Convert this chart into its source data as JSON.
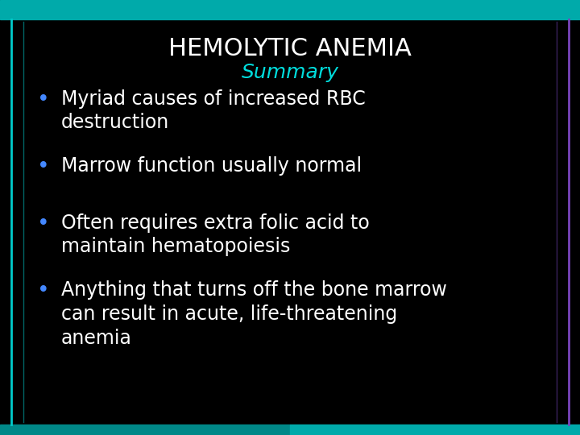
{
  "title": "HEMOLYTIC ANEMIA",
  "subtitle": "Summary",
  "background_color": "#000000",
  "title_color": "#ffffff",
  "subtitle_color": "#00dddd",
  "bullet_color": "#ffffff",
  "bullet_dot_color": "#4488ff",
  "border_left_color": "#00cccc",
  "border_right_color": "#7744bb",
  "border_bottom_color": "#00aaaa",
  "border_top_color": "#00aaaa",
  "bullets": [
    "Myriad causes of increased RBC\ndestruction",
    "Marrow function usually normal",
    "Often requires extra folic acid to\nmaintain hematopoiesis",
    "Anything that turns off the bone marrow\ncan result in acute, life-threatening\nanemia"
  ],
  "title_fontsize": 22,
  "subtitle_fontsize": 18,
  "bullet_fontsize": 17,
  "figwidth": 7.2,
  "figheight": 5.4,
  "dpi": 100
}
